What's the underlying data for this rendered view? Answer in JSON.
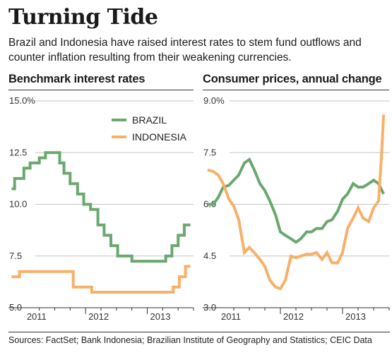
{
  "header": {
    "title": "Turning Tide",
    "subtitle": "Brazil and Indonesia have raised interest rates to stem fund outflows and counter inflation resulting from their weakening currencies."
  },
  "footer": {
    "source": "Sources: FactSet; Bank Indonesia; Brazilian Institute of Geography and Statistics; CEIC Data"
  },
  "colors": {
    "brazil": "#6aa86f",
    "indonesia": "#f8b068",
    "grid": "#c6c6c6",
    "axis": "#333333"
  },
  "chart_data": [
    {
      "type": "line",
      "title": "Benchmark interest rates",
      "ylim": [
        5,
        15
      ],
      "y_ticks": [
        5,
        7.5,
        10,
        12.5,
        15
      ],
      "y_tick_labels": [
        "5.0",
        "7.5",
        "10.0",
        "12.5",
        "15.0%"
      ],
      "x_tick_labels": [
        "2011",
        "2012",
        "2013"
      ],
      "xlim": [
        2010.75,
        2013.75
      ],
      "legend": {
        "placement": "top-right",
        "entries": [
          "BRAZIL",
          "INDONESIA"
        ]
      },
      "grid": true,
      "series": [
        {
          "name": "BRAZIL",
          "step": true,
          "x": [
            2010.8,
            2010.85,
            2011.0,
            2011.1,
            2011.25,
            2011.35,
            2011.48,
            2011.58,
            2011.65,
            2011.75,
            2011.87,
            2011.97,
            2012.08,
            2012.2,
            2012.3,
            2012.41,
            2012.52,
            2012.63,
            2012.75,
            2013.3,
            2013.4,
            2013.5,
            2013.6,
            2013.7
          ],
          "y": [
            10.75,
            11.25,
            11.75,
            12.0,
            12.25,
            12.5,
            12.5,
            12.0,
            11.5,
            11.0,
            10.5,
            10.0,
            9.75,
            9.0,
            8.5,
            8.0,
            7.5,
            7.5,
            7.25,
            7.5,
            8.0,
            8.5,
            9.0,
            9.0
          ]
        },
        {
          "name": "INDONESIA",
          "step": true,
          "x": [
            2010.8,
            2010.93,
            2011.8,
            2012.1,
            2013.42,
            2013.52,
            2013.62,
            2013.7
          ],
          "y": [
            6.5,
            6.75,
            6.0,
            5.75,
            6.0,
            6.5,
            7.0,
            7.0
          ]
        }
      ]
    },
    {
      "type": "line",
      "title": "Consumer prices, annual change",
      "ylim": [
        3,
        9
      ],
      "y_ticks": [
        3,
        4.5,
        6,
        7.5,
        9
      ],
      "y_tick_labels": [
        "3.0",
        "4.5",
        "6.0",
        "7.5",
        "9.0%"
      ],
      "x_tick_labels": [
        "2011",
        "2012",
        "2013"
      ],
      "xlim": [
        2010.75,
        2013.75
      ],
      "grid": true,
      "series": [
        {
          "name": "BRAZIL",
          "x": [
            2010.83,
            2010.92,
            2011.0,
            2011.08,
            2011.17,
            2011.25,
            2011.33,
            2011.42,
            2011.5,
            2011.58,
            2011.67,
            2011.75,
            2011.83,
            2011.92,
            2012.0,
            2012.08,
            2012.17,
            2012.25,
            2012.33,
            2012.42,
            2012.5,
            2012.58,
            2012.67,
            2012.75,
            2012.83,
            2012.92,
            2013.0,
            2013.08,
            2013.17,
            2013.25,
            2013.33,
            2013.42,
            2013.5,
            2013.58,
            2013.66
          ],
          "y": [
            6.0,
            6.0,
            6.2,
            6.5,
            6.55,
            6.7,
            6.85,
            7.2,
            7.3,
            7.0,
            6.6,
            6.4,
            6.1,
            5.7,
            5.2,
            5.1,
            5.0,
            4.9,
            5.0,
            5.2,
            5.2,
            5.3,
            5.3,
            5.5,
            5.55,
            5.8,
            6.15,
            6.3,
            6.6,
            6.5,
            6.5,
            6.6,
            6.7,
            6.6,
            6.3
          ]
        },
        {
          "name": "INDONESIA",
          "x": [
            2010.83,
            2010.92,
            2011.0,
            2011.08,
            2011.17,
            2011.25,
            2011.33,
            2011.42,
            2011.5,
            2011.58,
            2011.67,
            2011.75,
            2011.83,
            2011.92,
            2012.0,
            2012.08,
            2012.17,
            2012.25,
            2012.33,
            2012.42,
            2012.5,
            2012.58,
            2012.67,
            2012.75,
            2012.83,
            2012.92,
            2013.0,
            2013.08,
            2013.17,
            2013.25,
            2013.33,
            2013.42,
            2013.5,
            2013.58,
            2013.63,
            2013.66
          ],
          "y": [
            7.0,
            6.95,
            6.85,
            6.6,
            6.15,
            5.95,
            5.55,
            4.6,
            4.75,
            4.6,
            4.4,
            4.2,
            3.8,
            3.6,
            3.55,
            3.8,
            4.5,
            4.45,
            4.5,
            4.55,
            4.55,
            4.6,
            4.4,
            4.6,
            4.3,
            4.3,
            4.6,
            5.3,
            5.6,
            5.9,
            5.6,
            5.5,
            5.9,
            6.1,
            7.5,
            8.6
          ]
        }
      ]
    }
  ]
}
